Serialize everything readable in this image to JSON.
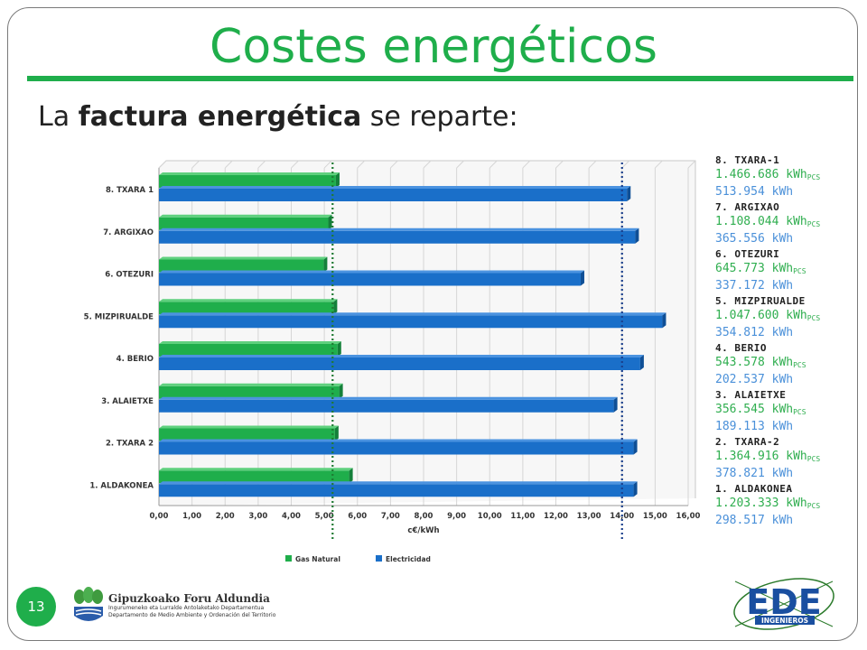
{
  "slide": {
    "title": "Costes energéticos",
    "subtitle_pre": "La ",
    "subtitle_bold": "factura energética",
    "subtitle_post": " se reparte:",
    "page_number": "13"
  },
  "chart_data": {
    "type": "bar",
    "orientation": "horizontal",
    "categories": [
      "8. TXARA 1",
      "7. ARGIXAO",
      "6. OTEZURI",
      "5. MIZPIRUALDE",
      "4. BERIO",
      "3. ALAIETXE",
      "2. TXARA 2",
      "1. ALDAKONEA"
    ],
    "series": [
      {
        "name": "Gas Natural",
        "color": "#1fae4b",
        "values": [
          5.35,
          5.12,
          4.98,
          5.28,
          5.4,
          5.45,
          5.32,
          5.75
        ]
      },
      {
        "name": "Electricidad",
        "color": "#1a6fc9",
        "values": [
          14.15,
          14.4,
          12.75,
          15.22,
          14.55,
          13.75,
          14.35,
          14.35
        ]
      }
    ],
    "xlabel": "c€/kWh",
    "xlim": [
      0,
      16
    ],
    "xticks": [
      "0,00",
      "1,00",
      "2,00",
      "3,00",
      "4,00",
      "5,00",
      "6,00",
      "7,00",
      "8,00",
      "9,00",
      "10,00",
      "11,00",
      "12,00",
      "13,00",
      "14,00",
      "15,00",
      "16,00"
    ],
    "reference_lines": [
      {
        "value": 5.25,
        "color": "#1f7a32"
      },
      {
        "value": 14.0,
        "color": "#1a3f8c"
      }
    ],
    "grid": true,
    "legend": "bottom"
  },
  "consumption": [
    {
      "name": "8. TXARA-1",
      "gas": "1.466.686 kWh",
      "elec": "513.954 kWh"
    },
    {
      "name": "7. ARGIXAO",
      "gas": "1.108.044 kWh",
      "elec": "365.556 kWh"
    },
    {
      "name": "6. OTEZURI",
      "gas": "645.773 kWh",
      "elec": "337.172 kWh"
    },
    {
      "name": "5. MIZPIRUALDE",
      "gas": "1.047.600 kWh",
      "elec": "354.812 kWh"
    },
    {
      "name": "4. BERIO",
      "gas": "543.578 kWh",
      "elec": "202.537 kWh"
    },
    {
      "name": "3. ALAIETXE",
      "gas": "356.545 kWh",
      "elec": "189.113 kWh"
    },
    {
      "name": "2. TXARA-2",
      "gas": "1.364.916 kWh",
      "elec": "378.821 kWh"
    },
    {
      "name": "1. ALDAKONEA",
      "gas": "1.203.333 kWh",
      "elec": "298.517 kWh"
    }
  ],
  "gas_unit_subscript": "PCS",
  "logos": {
    "gfa_name": "Gipuzkoako Foru Aldundia",
    "gfa_dept_eu": "Ingurumeneko eta Lurralde Antolaketako Departamentua",
    "gfa_dept_es": "Departamento de Medio Ambiente y Ordenación del Territorio",
    "ede_text": "EDE",
    "ede_sub": "INGENIEROS"
  }
}
